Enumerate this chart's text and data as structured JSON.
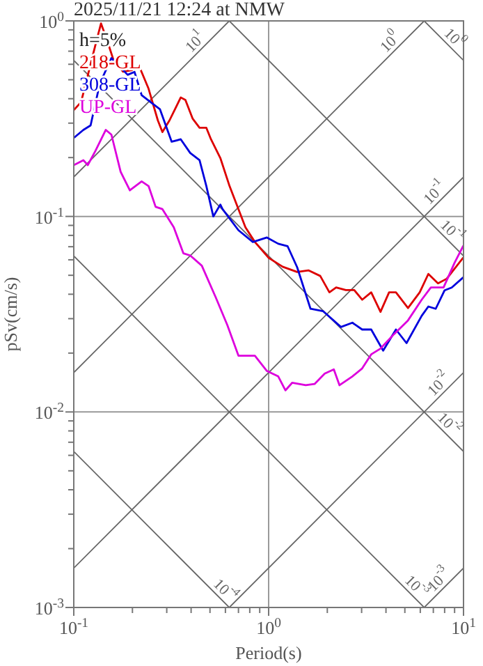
{
  "chart_data": {
    "type": "line",
    "title": "2025/11/21 12:24 at NMW",
    "xlabel": "Period(s)",
    "ylabel": "pSv(cm/s)",
    "log": "xy",
    "grid": true,
    "legend": "top left",
    "xlim": [
      0.1,
      10
    ],
    "ylim": [
      0.001,
      1
    ],
    "xticks": [
      {
        "value": 0.1,
        "label": "10$^{-1}$"
      },
      {
        "value": 0.2,
        "label": null
      },
      {
        "value": 0.3,
        "label": null
      },
      {
        "value": 0.4,
        "label": null
      },
      {
        "value": 0.5,
        "label": null
      },
      {
        "value": 0.6,
        "label": null
      },
      {
        "value": 0.7,
        "label": null
      },
      {
        "value": 0.8,
        "label": null
      },
      {
        "value": 0.9,
        "label": null
      },
      {
        "value": 1,
        "label": "10$^{0}$"
      },
      {
        "value": 2,
        "label": null
      },
      {
        "value": 3,
        "label": null
      },
      {
        "value": 4,
        "label": null
      },
      {
        "value": 5,
        "label": null
      },
      {
        "value": 6,
        "label": null
      },
      {
        "value": 7,
        "label": null
      },
      {
        "value": 8,
        "label": null
      },
      {
        "value": 9,
        "label": null
      },
      {
        "value": 10,
        "label": "10$^{1}$"
      }
    ],
    "yticks": [
      {
        "value": 0.001,
        "label": "10$^{-3}$"
      },
      {
        "value": 0.002,
        "label": null
      },
      {
        "value": 0.003,
        "label": null
      },
      {
        "value": 0.004,
        "label": null
      },
      {
        "value": 0.005,
        "label": null
      },
      {
        "value": 0.006,
        "label": null
      },
      {
        "value": 0.007,
        "label": null
      },
      {
        "value": 0.008,
        "label": null
      },
      {
        "value": 0.009,
        "label": null
      },
      {
        "value": 0.01,
        "label": "10$^{-2}$"
      },
      {
        "value": 0.02,
        "label": null
      },
      {
        "value": 0.03,
        "label": null
      },
      {
        "value": 0.04,
        "label": null
      },
      {
        "value": 0.05,
        "label": null
      },
      {
        "value": 0.06,
        "label": null
      },
      {
        "value": 0.07,
        "label": null
      },
      {
        "value": 0.08,
        "label": null
      },
      {
        "value": 0.09,
        "label": null
      },
      {
        "value": 0.1,
        "label": "10$^{-1}$"
      },
      {
        "value": 0.2,
        "label": null
      },
      {
        "value": 0.3,
        "label": null
      },
      {
        "value": 0.4,
        "label": null
      },
      {
        "value": 0.5,
        "label": null
      },
      {
        "value": 0.6,
        "label": null
      },
      {
        "value": 0.7,
        "label": null
      },
      {
        "value": 0.8,
        "label": null
      },
      {
        "value": 0.9,
        "label": null
      },
      {
        "value": 1,
        "label": "10$^{0}$"
      }
    ],
    "annotations": [
      "h=5%",
      {
        "text": "10$^{1}$",
        "x": 0.454,
        "y": 0.7226
      },
      {
        "text": "10$^{0}$",
        "x": 4.54,
        "y": 0.7226
      },
      {
        "text": "10$^{-1}$",
        "x": 7.7,
        "y": 0.1225
      },
      {
        "text": "10$^{-2}$",
        "x": 8.07,
        "y": 0.01284
      },
      {
        "text": "10$^{-3}$",
        "x": 8.07,
        "y": 0.001284
      },
      {
        "text": "10$^{0}$",
        "x": 8.3,
        "y": 0.757
      },
      {
        "text": "10$^{-1}$",
        "x": 8.07,
        "y": 0.0779
      },
      {
        "text": "10$^{-2}$",
        "x": 7.8,
        "y": 0.00806
      },
      {
        "text": "10$^{-3}$",
        "x": 5.3,
        "y": 0.001186
      },
      {
        "text": "10$^{-4}$",
        "x": 0.553,
        "y": 0.001136
      }
    ],
    "series": [
      {
        "type": "line",
        "color": "#666666",
        "x": [
          0.1,
          0.628
        ],
        "values": [
          0.159,
          1
        ]
      },
      {
        "type": "line",
        "color": "#666666",
        "x": [
          0.1,
          6.283
        ],
        "values": [
          0.0159,
          1
        ]
      },
      {
        "type": "line",
        "color": "#666666",
        "x": [
          0.1,
          10
        ],
        "values": [
          0.00159,
          0.159
        ]
      },
      {
        "type": "line",
        "color": "#666666",
        "x": [
          0.628,
          10
        ],
        "values": [
          0.001,
          0.0159
        ]
      },
      {
        "type": "line",
        "color": "#666666",
        "x": [
          6.283,
          10
        ],
        "values": [
          0.001,
          0.00159
        ]
      },
      {
        "type": "line",
        "color": "#666666",
        "x": [
          6.283,
          10
        ],
        "values": [
          1,
          0.628
        ]
      },
      {
        "type": "line",
        "color": "#666666",
        "x": [
          0.628,
          10
        ],
        "values": [
          1,
          0.0628
        ]
      },
      {
        "type": "line",
        "color": "#666666",
        "x": [
          0.1,
          10
        ],
        "values": [
          0.628,
          0.00628
        ]
      },
      {
        "type": "line",
        "color": "#666666",
        "x": [
          0.1,
          6.283
        ],
        "values": [
          0.0628,
          0.001
        ]
      },
      {
        "type": "line",
        "color": "#666666",
        "x": [
          0.1,
          0.628
        ],
        "values": [
          0.00628,
          0.001
        ]
      },
      {
        "name": "218-GL",
        "color": "#dd0000",
        "x": [
          0.1,
          0.109,
          0.1286,
          0.138,
          0.148,
          0.16,
          0.179,
          0.199,
          0.216,
          0.242,
          0.27,
          0.285,
          0.31,
          0.354,
          0.374,
          0.407,
          0.442,
          0.479,
          0.506,
          0.565,
          0.63,
          0.7,
          0.76,
          0.85,
          1.0,
          1.18,
          1.4,
          1.6,
          1.84,
          2.05,
          2.22,
          2.49,
          2.75,
          3.02,
          3.36,
          3.75,
          4.15,
          4.5,
          5.19,
          5.96,
          6.6,
          7.4,
          8.2,
          9.95
        ],
        "values": [
          0.35,
          0.384,
          0.74,
          0.97,
          0.8,
          0.63,
          0.55,
          0.56,
          0.59,
          0.45,
          0.31,
          0.27,
          0.31,
          0.406,
          0.394,
          0.317,
          0.284,
          0.284,
          0.248,
          0.199,
          0.143,
          0.109,
          0.088,
          0.074,
          0.0614,
          0.0553,
          0.052,
          0.053,
          0.0496,
          0.0409,
          0.0433,
          0.042,
          0.042,
          0.0375,
          0.0409,
          0.0325,
          0.0409,
          0.0409,
          0.034,
          0.0409,
          0.0508,
          0.0455,
          0.048,
          0.0614
        ]
      },
      {
        "name": "308-GL",
        "color": "#0000dd",
        "x": [
          0.1,
          0.112,
          0.122,
          0.136,
          0.156,
          0.169,
          0.189,
          0.205,
          0.223,
          0.248,
          0.277,
          0.318,
          0.354,
          0.396,
          0.442,
          0.479,
          0.52,
          0.565,
          0.58,
          0.7,
          0.83,
          0.98,
          1.12,
          1.25,
          1.4,
          1.64,
          1.9,
          2.35,
          2.69,
          3.02,
          3.36,
          3.87,
          4.5,
          5.1,
          6.1,
          6.6,
          7.2,
          8.0,
          8.7,
          9.95
        ],
        "values": [
          0.252,
          0.277,
          0.292,
          0.478,
          0.645,
          0.595,
          0.53,
          0.548,
          0.417,
          0.384,
          0.353,
          0.241,
          0.248,
          0.211,
          0.194,
          0.143,
          0.1,
          0.115,
          0.109,
          0.085,
          0.074,
          0.078,
          0.0725,
          0.0705,
          0.055,
          0.0337,
          0.0328,
          0.0272,
          0.0286,
          0.0264,
          0.0264,
          0.0206,
          0.0264,
          0.0225,
          0.031,
          0.0346,
          0.0337,
          0.0419,
          0.0433,
          0.0487
        ]
      },
      {
        "name": "UP-GL",
        "color": "#dd00dd",
        "x": [
          0.1,
          0.112,
          0.118,
          0.129,
          0.146,
          0.156,
          0.174,
          0.194,
          0.223,
          0.242,
          0.263,
          0.285,
          0.326,
          0.365,
          0.396,
          0.454,
          0.535,
          0.614,
          0.7,
          0.85,
          0.98,
          1.12,
          1.22,
          1.32,
          1.55,
          1.72,
          1.94,
          2.16,
          2.31,
          2.69,
          3.02,
          3.36,
          3.75,
          4.4,
          5.19,
          6.1,
          6.8,
          7.9,
          9.0,
          9.95
        ],
        "values": [
          0.183,
          0.194,
          0.183,
          0.216,
          0.277,
          0.262,
          0.169,
          0.136,
          0.151,
          0.143,
          0.112,
          0.109,
          0.088,
          0.0648,
          0.0631,
          0.056,
          0.0386,
          0.0278,
          0.0194,
          0.0194,
          0.0162,
          0.0152,
          0.0129,
          0.0141,
          0.0137,
          0.0139,
          0.0157,
          0.0165,
          0.0137,
          0.0152,
          0.0167,
          0.0197,
          0.0211,
          0.025,
          0.0294,
          0.0375,
          0.0433,
          0.0433,
          0.058,
          0.0705
        ]
      }
    ]
  }
}
